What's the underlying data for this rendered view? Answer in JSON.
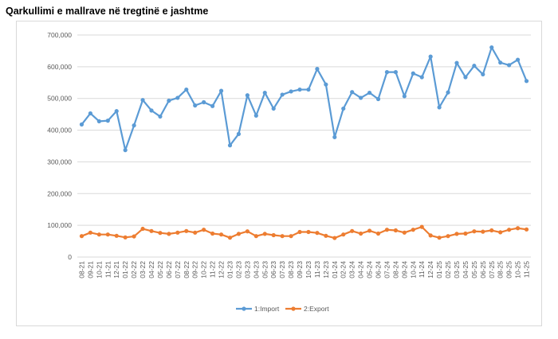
{
  "chart_data": {
    "type": "line",
    "title": "Qarkullimi e mallrave në tregtinë e jashtme",
    "xlabel": "",
    "ylabel": "",
    "ylim": [
      0,
      700000
    ],
    "yticks": [
      "0",
      "100,000",
      "200,000",
      "300,000",
      "400,000",
      "500,000",
      "600,000",
      "700,000"
    ],
    "ytick_values": [
      0,
      100000,
      200000,
      300000,
      400000,
      500000,
      600000,
      700000
    ],
    "grid": true,
    "legend_position": "bottom",
    "categories": [
      "08-21",
      "09-21",
      "10-21",
      "11-21",
      "12-21",
      "01-22",
      "02-22",
      "03-22",
      "04-22",
      "05-22",
      "06-22",
      "07-22",
      "08-22",
      "09-22",
      "10-22",
      "11-22",
      "12-22",
      "01-23",
      "02-23",
      "03-23",
      "04-23",
      "05-23",
      "06-23",
      "07-23",
      "08-23",
      "09-23",
      "10-23",
      "11-23",
      "12-23",
      "01-24",
      "02-24",
      "03-24",
      "04-24",
      "05-24",
      "06-24",
      "07-24",
      "08-24",
      "09-24",
      "10-24",
      "11-24",
      "12-24",
      "01-25",
      "02-25",
      "03-25",
      "04-25",
      "05-25",
      "06-25",
      "07-25",
      "08-25",
      "09-25",
      "10-25",
      "11-25"
    ],
    "series": [
      {
        "name": "1:Import",
        "color": "#5b9bd5",
        "values": [
          418000,
          453000,
          428000,
          430000,
          460000,
          337000,
          415000,
          495000,
          462000,
          443000,
          493000,
          502000,
          528000,
          478000,
          488000,
          476000,
          524000,
          352000,
          388000,
          510000,
          446000,
          518000,
          468000,
          512000,
          522000,
          528000,
          528000,
          593000,
          544000,
          378000,
          468000,
          520000,
          502000,
          518000,
          498000,
          583000,
          583000,
          507000,
          579000,
          567000,
          632000,
          472000,
          519000,
          612000,
          567000,
          603000,
          576000,
          661000,
          613000,
          605000,
          622000,
          555000
        ]
      },
      {
        "name": "2:Export",
        "color": "#ed7d31",
        "values": [
          66000,
          77000,
          71000,
          71000,
          67000,
          62000,
          65000,
          89000,
          82000,
          76000,
          73000,
          77000,
          82000,
          77000,
          86000,
          74000,
          71000,
          61000,
          73000,
          81000,
          66000,
          73000,
          69000,
          66000,
          66000,
          79000,
          79000,
          76000,
          67000,
          60000,
          71000,
          82000,
          74000,
          83000,
          74000,
          86000,
          84000,
          77000,
          86000,
          95000,
          68000,
          61000,
          66000,
          73000,
          74000,
          81000,
          80000,
          84000,
          78000,
          86000,
          91000,
          87000
        ]
      }
    ]
  }
}
